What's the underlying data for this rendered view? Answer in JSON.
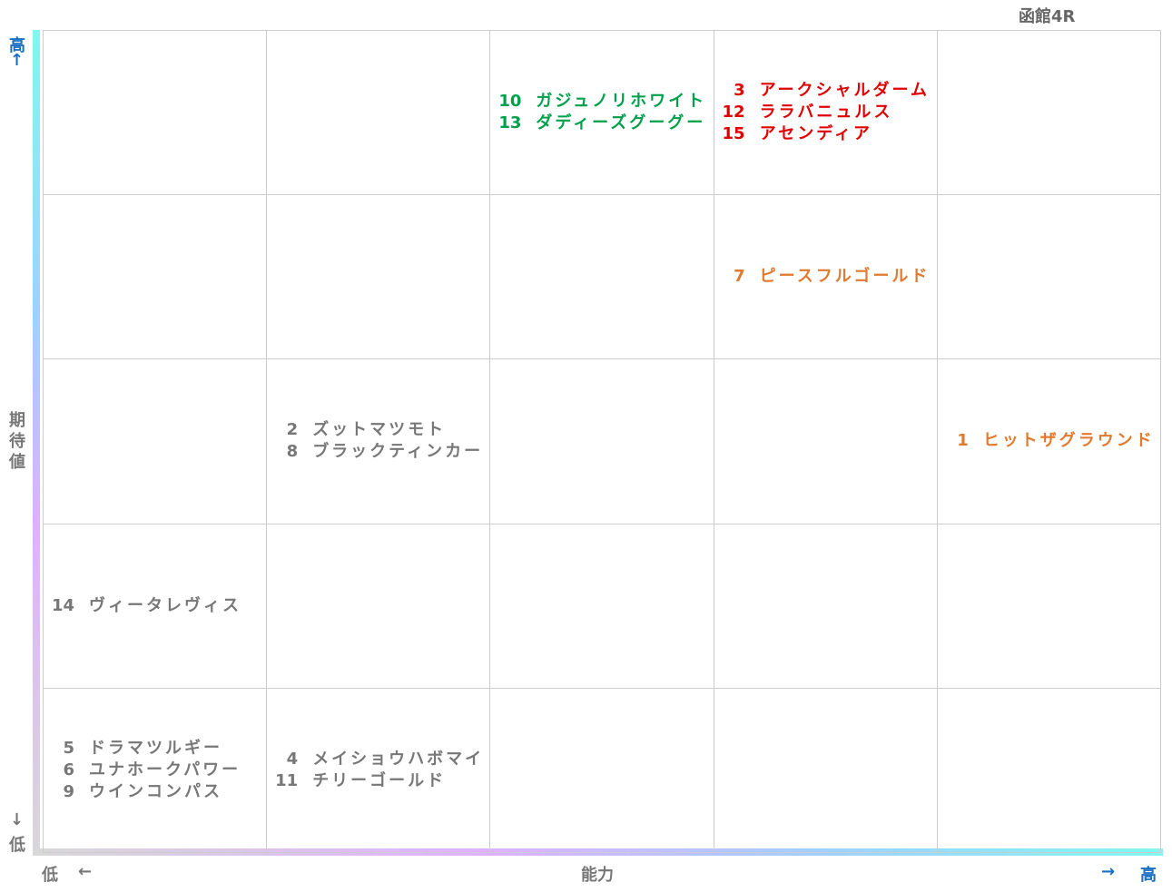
{
  "title": "函館4R",
  "y_axis": {
    "label": "期待値",
    "high": "高",
    "high_arrow": "↑",
    "low_arrow": "↓",
    "low": "低"
  },
  "x_axis": {
    "label": "能力",
    "low": "低",
    "low_arrow": "←",
    "high_arrow": "→",
    "high": "高"
  },
  "rows": [
    [
      null,
      null,
      {
        "color": "#00a04a",
        "entries": [
          {
            "number": 10,
            "name": "ガジュノリホワイト"
          },
          {
            "number": 13,
            "name": "ダディーズグーグー"
          }
        ]
      },
      {
        "color": "#e00000",
        "entries": [
          {
            "number": 3,
            "name": "アークシャルダーム"
          },
          {
            "number": 12,
            "name": "ララバニュルス"
          },
          {
            "number": 15,
            "name": "アセンディア"
          }
        ]
      },
      null
    ],
    [
      null,
      null,
      null,
      {
        "color": "#e07a30",
        "entries": [
          {
            "number": 7,
            "name": "ピースフルゴールド"
          }
        ]
      },
      null
    ],
    [
      null,
      {
        "color": "#777777",
        "entries": [
          {
            "number": 2,
            "name": "ズットマツモト"
          },
          {
            "number": 8,
            "name": "ブラックティンカー"
          }
        ]
      },
      null,
      null,
      {
        "color": "#e07a30",
        "entries": [
          {
            "number": 1,
            "name": "ヒットザグラウンド"
          }
        ]
      }
    ],
    [
      {
        "color": "#777777",
        "entries": [
          {
            "number": 14,
            "name": "ヴィータレヴィス"
          }
        ]
      },
      null,
      null,
      null,
      null
    ],
    [
      {
        "color": "#777777",
        "entries": [
          {
            "number": 5,
            "name": "ドラマツルギー"
          },
          {
            "number": 6,
            "name": "ユナホークパワー"
          },
          {
            "number": 9,
            "name": "ウインコンパス"
          }
        ]
      },
      {
        "color": "#777777",
        "entries": [
          {
            "number": 4,
            "name": "メイショウハボマイ"
          },
          {
            "number": 11,
            "name": "チリーゴールド"
          }
        ]
      },
      null,
      null,
      null
    ]
  ]
}
